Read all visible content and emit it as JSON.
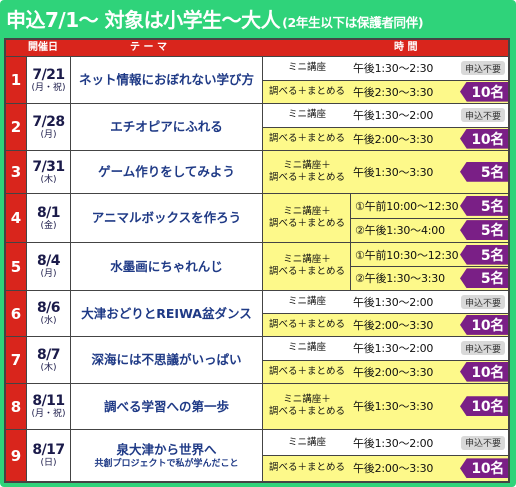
{
  "header": {
    "title": "申込7/1〜 対象は小学生〜大人",
    "note": "(2年生以下は保護者同伴)"
  },
  "columns": {
    "date": "開催日",
    "theme": "テ ー マ",
    "time": "時 間"
  },
  "colors": {
    "frame": "#2fd37a",
    "accent": "#d9251c",
    "capacity": "#7a1f86",
    "highlight": "#fdf98a",
    "badge": "#d9d9d9"
  },
  "events": [
    {
      "no": "1",
      "date": "7/21",
      "weekday": "(月・祝)",
      "theme": "ネット情報におぼれない学び方",
      "sessions": [
        {
          "type": "ミニ講座",
          "time": "午後1:30〜2:30",
          "badge": "申込不要"
        },
        {
          "type": "調べる＋まとめる",
          "time": "午後2:30〜3:30",
          "capacity": "10名"
        }
      ]
    },
    {
      "no": "2",
      "date": "7/28",
      "weekday": "(月)",
      "theme": "エチオピアにふれる",
      "sessions": [
        {
          "type": "ミニ講座",
          "time": "午後1:30〜2:00",
          "badge": "申込不要"
        },
        {
          "type": "調べる＋まとめる",
          "time": "午後2:00〜3:30",
          "capacity": "10名"
        }
      ]
    },
    {
      "no": "3",
      "date": "7/31",
      "weekday": "(木)",
      "theme": "ゲーム作りをしてみよう",
      "sessions": [
        {
          "type": "ミニ講座＋\n調べる＋まとめる",
          "time": "午後1:30〜3:30",
          "capacity": "5名"
        }
      ]
    },
    {
      "no": "4",
      "date": "8/1",
      "weekday": "(金)",
      "theme": "アニマルボックスを作ろう",
      "sessions": [
        {
          "type": "ミニ講座＋\n調べる＋まとめる",
          "time": "①午前10:00〜12:30",
          "capacity": "5名"
        },
        {
          "type": "",
          "time": "②午後1:30〜4:00",
          "capacity": "5名"
        }
      ]
    },
    {
      "no": "5",
      "date": "8/4",
      "weekday": "(月)",
      "theme": "水墨画にちゃれんじ",
      "sessions": [
        {
          "type": "ミニ講座＋\n調べる＋まとめる",
          "time": "①午前10:30〜12:30",
          "capacity": "5名"
        },
        {
          "type": "",
          "time": "②午後1:30〜3:30",
          "capacity": "5名"
        }
      ]
    },
    {
      "no": "6",
      "date": "8/6",
      "weekday": "(水)",
      "theme": "大津おどりとREIWA盆ダンス",
      "sessions": [
        {
          "type": "ミニ講座",
          "time": "午後1:30〜2:00",
          "badge": "申込不要"
        },
        {
          "type": "調べる＋まとめる",
          "time": "午後2:00〜3:30",
          "capacity": "10名"
        }
      ]
    },
    {
      "no": "7",
      "date": "8/7",
      "weekday": "(木)",
      "theme": "深海には不思議がいっぱい",
      "sessions": [
        {
          "type": "ミニ講座",
          "time": "午後1:30〜2:00",
          "badge": "申込不要"
        },
        {
          "type": "調べる＋まとめる",
          "time": "午後2:00〜3:30",
          "capacity": "10名"
        }
      ]
    },
    {
      "no": "8",
      "date": "8/11",
      "weekday": "(月・祝)",
      "theme": "調べる学習への第一歩",
      "sessions": [
        {
          "type": "ミニ講座＋\n調べる＋まとめる",
          "time": "午後1:30〜3:30",
          "capacity": "10名"
        }
      ]
    },
    {
      "no": "9",
      "date": "8/17",
      "weekday": "(日)",
      "theme": "泉大津から世界へ",
      "theme_sub": "共創プロジェクトで私が学んだこと",
      "sessions": [
        {
          "type": "ミニ講座",
          "time": "午後1:30〜2:00",
          "badge": "申込不要"
        },
        {
          "type": "調べる＋まとめる",
          "time": "午後2:00〜3:30",
          "capacity": "10名"
        }
      ]
    }
  ]
}
